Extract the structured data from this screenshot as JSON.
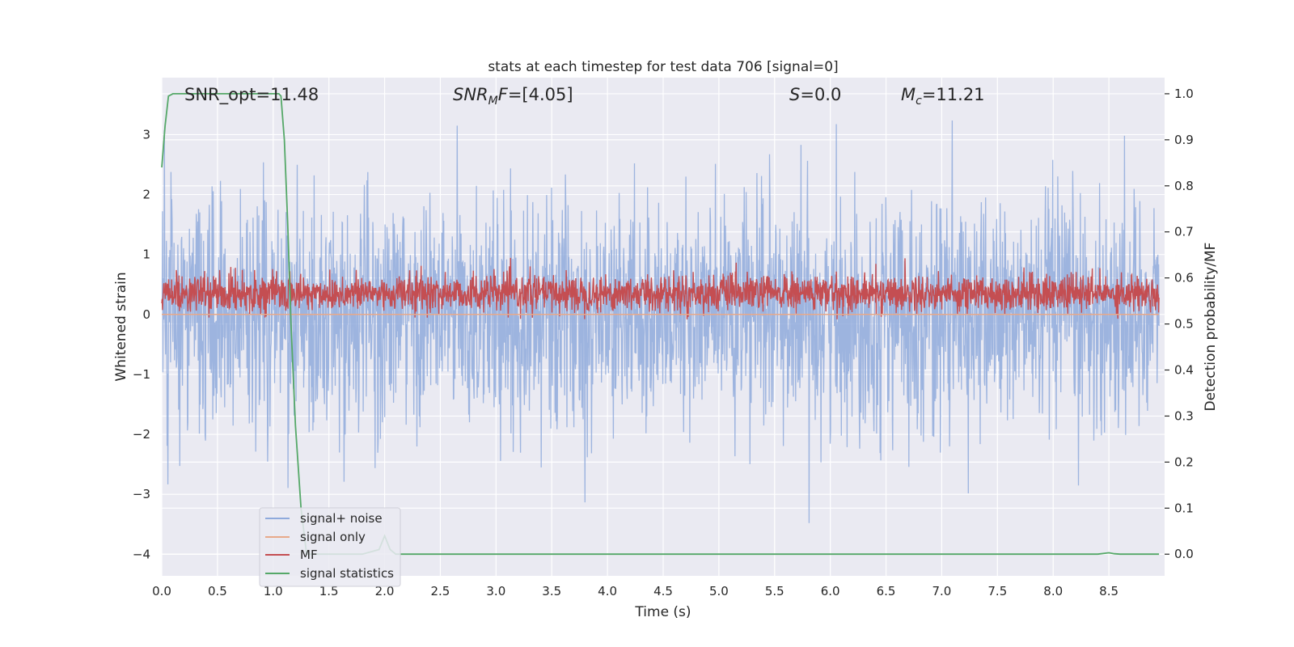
{
  "chart_data": {
    "type": "line",
    "title": "stats at each timestep for test data 706 [signal=0]",
    "xlabel": "Time (s)",
    "ylabel": "Whitened strain",
    "ylabel_right": "Detection probability/MF",
    "xlim": [
      0.0,
      9.0
    ],
    "ylim": [
      -4.36,
      3.95
    ],
    "ylim_right": [
      -0.047,
      1.035
    ],
    "x_ticks": [
      0.0,
      0.5,
      1.0,
      1.5,
      2.0,
      2.5,
      3.0,
      3.5,
      4.0,
      4.5,
      5.0,
      5.5,
      6.0,
      6.5,
      7.0,
      7.5,
      8.0,
      8.5
    ],
    "x_tick_labels": [
      "0.0",
      "0.5",
      "1.0",
      "1.5",
      "2.0",
      "2.5",
      "3.0",
      "3.5",
      "4.0",
      "4.5",
      "5.0",
      "5.5",
      "6.0",
      "6.5",
      "7.0",
      "7.5",
      "8.0",
      "8.5"
    ],
    "y_ticks": [
      3,
      2,
      1,
      0,
      -1,
      -2,
      -3,
      -4
    ],
    "y_tick_labels": [
      "3",
      "2",
      "1",
      "0",
      "−1",
      "−2",
      "−3",
      "−4"
    ],
    "y_ticks_right": [
      1.0,
      0.9,
      0.8,
      0.7,
      0.6,
      0.5,
      0.4,
      0.3,
      0.2,
      0.1,
      0.0
    ],
    "y_tick_labels_right": [
      "1.0",
      "0.9",
      "0.8",
      "0.7",
      "0.6",
      "0.5",
      "0.4",
      "0.3",
      "0.2",
      "0.1",
      "0.0"
    ],
    "grid": true,
    "legend_position": "lower-left",
    "annotations": [
      {
        "main": "SNR_opt=11.48",
        "x": 0.2
      },
      {
        "italic": "SNR",
        "sub": "M",
        "italic2": "F",
        "rest": "=[4.05]",
        "x": 2.6
      },
      {
        "italic": "S",
        "rest": "=0.0",
        "x": 5.6
      },
      {
        "italic": "M",
        "sub": "c",
        "rest": "=11.21",
        "x": 6.6
      }
    ],
    "series": [
      {
        "name": "signal+ noise",
        "color": "#8faadc",
        "axis": "left",
        "description_range": [
          -3.6,
          3.6
        ],
        "typical_range": [
          -2.0,
          2.0
        ]
      },
      {
        "name": "signal only",
        "color": "#e8a98a",
        "axis": "left",
        "values_constant": 0.0
      },
      {
        "name": "MF",
        "color": "#c44e52",
        "axis": "right",
        "typical_range": [
          0.52,
          0.62
        ],
        "max": 0.66
      },
      {
        "name": "signal statistics",
        "color": "#55a868",
        "axis": "right",
        "x": [
          0.0,
          0.03,
          0.06,
          0.1,
          0.15,
          0.2,
          0.4,
          0.6,
          0.8,
          1.0,
          1.05,
          1.07,
          1.1,
          1.13,
          1.16,
          1.2,
          1.25,
          1.3,
          1.5,
          1.8,
          1.95,
          2.0,
          2.05,
          2.1,
          3.0,
          4.0,
          5.0,
          6.0,
          7.0,
          8.0,
          8.4,
          8.5,
          8.55,
          8.6,
          8.95
        ],
        "values": [
          0.84,
          0.93,
          0.995,
          1.0,
          1.0,
          1.0,
          1.0,
          1.0,
          1.0,
          1.0,
          1.0,
          0.995,
          0.9,
          0.72,
          0.5,
          0.28,
          0.1,
          0.0,
          0.0,
          0.0,
          0.01,
          0.04,
          0.01,
          0.0,
          0.0,
          0.0,
          0.0,
          0.0,
          0.0,
          0.0,
          0.0,
          0.003,
          0.001,
          0.0,
          0.0
        ]
      }
    ]
  }
}
